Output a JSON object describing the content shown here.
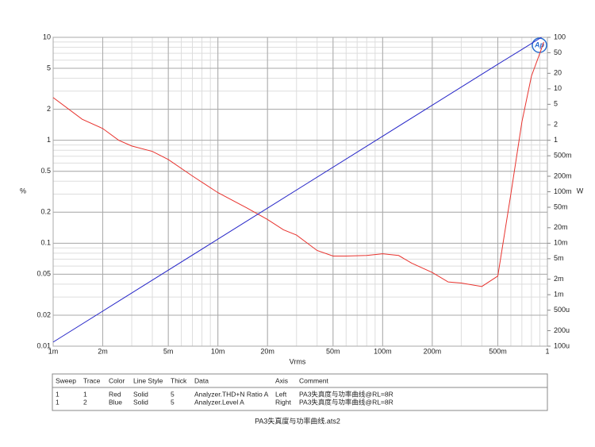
{
  "chart_data": {
    "type": "line",
    "xlabel": "Vrms",
    "ylabel": "%",
    "y2label": "W",
    "xscale": "log",
    "yscale": "log",
    "y2scale": "log",
    "grid": true,
    "minor_grid": true,
    "xlim": [
      0.001,
      1
    ],
    "ylim": [
      0.01,
      10
    ],
    "y2lim": [
      0.0001,
      100
    ],
    "xticks": [
      {
        "value": 0.001,
        "label": "1m"
      },
      {
        "value": 0.002,
        "label": "2m"
      },
      {
        "value": 0.005,
        "label": "5m"
      },
      {
        "value": 0.01,
        "label": "10m"
      },
      {
        "value": 0.02,
        "label": "20m"
      },
      {
        "value": 0.05,
        "label": "50m"
      },
      {
        "value": 0.1,
        "label": "100m"
      },
      {
        "value": 0.2,
        "label": "200m"
      },
      {
        "value": 0.5,
        "label": "500m"
      },
      1
    ],
    "yticks": [
      0.01,
      0.02,
      0.05,
      0.1,
      0.2,
      0.5,
      1,
      2,
      5,
      10
    ],
    "y2ticks": [
      {
        "value": 0.0001,
        "label": "100u"
      },
      {
        "value": 0.0002,
        "label": "200u"
      },
      {
        "value": 0.0005,
        "label": "500u"
      },
      {
        "value": 0.001,
        "label": "1m"
      },
      {
        "value": 0.002,
        "label": "2m"
      },
      {
        "value": 0.005,
        "label": "5m"
      },
      {
        "value": 0.01,
        "label": "10m"
      },
      {
        "value": 0.02,
        "label": "20m"
      },
      {
        "value": 0.05,
        "label": "50m"
      },
      {
        "value": 0.1,
        "label": "100m"
      },
      {
        "value": 0.2,
        "label": "200m"
      },
      {
        "value": 0.5,
        "label": "500m"
      },
      1,
      2,
      5,
      10,
      20,
      50,
      100
    ],
    "series": [
      {
        "color": "#e8332e",
        "axis": "y",
        "x": [
          0.001,
          0.0015,
          0.002,
          0.0025,
          0.003,
          0.004,
          0.005,
          0.007,
          0.01,
          0.015,
          0.02,
          0.025,
          0.03,
          0.04,
          0.05,
          0.06,
          0.08,
          0.1,
          0.125,
          0.15,
          0.2,
          0.25,
          0.3,
          0.4,
          0.5,
          0.6,
          0.7,
          0.8,
          0.9,
          0.95
        ],
        "values": [
          2.6,
          1.6,
          1.3,
          1.0,
          0.88,
          0.78,
          0.65,
          0.45,
          0.31,
          0.22,
          0.17,
          0.135,
          0.12,
          0.085,
          0.075,
          0.075,
          0.076,
          0.079,
          0.076,
          0.064,
          0.052,
          0.042,
          0.041,
          0.038,
          0.048,
          0.3,
          1.5,
          4.2,
          7,
          9
        ]
      },
      {
        "color": "#2626c8",
        "axis": "y2",
        "x": [
          0.001,
          0.01,
          0.1,
          0.5,
          0.7,
          0.92
        ],
        "values": [
          0.00012,
          0.012,
          1.2,
          30,
          58,
          100
        ]
      }
    ]
  },
  "logo": "Ap",
  "table": {
    "header": [
      "Sweep",
      "Trace",
      "Color",
      "Line Style",
      "Thick",
      "Data",
      "Axis",
      "Comment"
    ],
    "rows": [
      [
        "1",
        "1",
        "Red",
        "Solid",
        "5",
        "Analyzer.THD+N Ratio A",
        "Left",
        "PA3失真度与功率曲线@RL=8R"
      ],
      [
        "1",
        "2",
        "Blue",
        "Solid",
        "5",
        "Analyzer.Level A",
        "Right",
        "PA3失真度与功率曲线@RL=8R"
      ]
    ]
  },
  "footer": "PA3失真度与功率曲线.ats2"
}
